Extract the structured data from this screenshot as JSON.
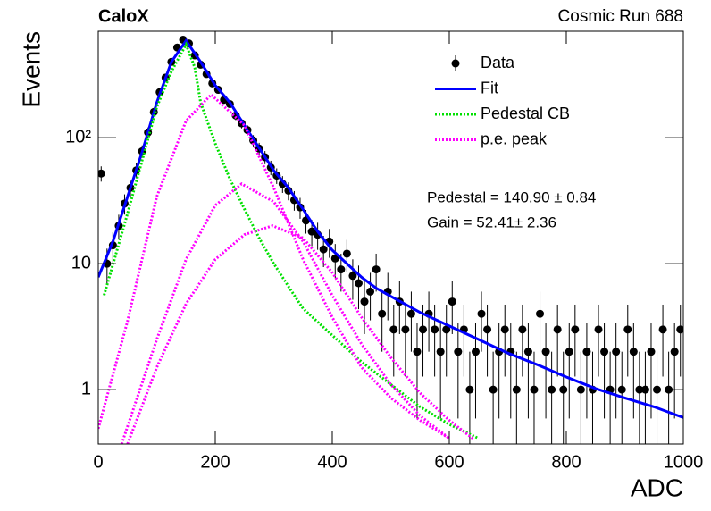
{
  "chart_data": {
    "type": "scatter",
    "title": "CaloX",
    "subtitle": "Cosmic Run 688",
    "xlabel": "ADC",
    "ylabel": "Events",
    "annotations": [
      "Pedestal = 140.90 ± 0.84",
      "Gain = 52.41± 2.36"
    ],
    "xlim": [
      0,
      1000
    ],
    "xticks": [
      0,
      200,
      400,
      600,
      800,
      1000
    ],
    "ylim": [
      0.37,
      700
    ],
    "yticks": [
      1,
      10,
      {
        "value": 100,
        "label": "10²"
      }
    ],
    "log_y": true,
    "series": [
      {
        "name": "Data",
        "style": "points",
        "color": "#000000",
        "x": [
          5,
          15,
          25,
          35,
          45,
          55,
          65,
          75,
          85,
          95,
          105,
          115,
          125,
          135,
          145,
          155,
          165,
          175,
          185,
          195,
          205,
          215,
          225,
          235,
          245,
          255,
          265,
          275,
          285,
          295,
          305,
          315,
          325,
          335,
          345,
          355,
          365,
          375,
          385,
          395,
          405,
          415,
          425,
          435,
          445,
          455,
          465,
          475,
          485,
          495,
          505,
          515,
          525,
          535,
          545,
          555,
          565,
          575,
          585,
          595,
          605,
          615,
          625,
          635,
          645,
          655,
          665,
          675,
          685,
          695,
          705,
          715,
          725,
          735,
          745,
          755,
          765,
          775,
          785,
          795,
          805,
          815,
          825,
          835,
          845,
          855,
          865,
          875,
          885,
          895,
          905,
          915,
          925,
          935,
          945,
          955,
          965,
          975,
          985,
          995
        ],
        "values": [
          52,
          10,
          14,
          20,
          30,
          40,
          55,
          78,
          110,
          160,
          230,
          300,
          400,
          520,
          600,
          560,
          450,
          380,
          320,
          270,
          240,
          200,
          185,
          150,
          130,
          115,
          95,
          82,
          70,
          58,
          50,
          43,
          38,
          32,
          28,
          22,
          18,
          17,
          13,
          15,
          11,
          9,
          12,
          8,
          7,
          5,
          6,
          9,
          4,
          6,
          3,
          5,
          3,
          4,
          2,
          3,
          4,
          3,
          2,
          3,
          5,
          2,
          3,
          1,
          2,
          4,
          3,
          1,
          2,
          3,
          2,
          1,
          3,
          2,
          1,
          4,
          2,
          1,
          3,
          1,
          2,
          3,
          1,
          2,
          1,
          3,
          2,
          1,
          2,
          1,
          3,
          2,
          1,
          1,
          2,
          1,
          3,
          1,
          2,
          3
        ],
        "errors": [
          7.21,
          3.16,
          3.74,
          4.47,
          5.48,
          6.32,
          7.42,
          8.83,
          10.49,
          12.65,
          15.17,
          17.32,
          20,
          22.8,
          24.49,
          23.66,
          21.21,
          19.49,
          17.89,
          16.43,
          15.49,
          14.14,
          13.6,
          12.25,
          11.4,
          10.72,
          9.75,
          9.06,
          8.37,
          7.62,
          7.07,
          6.56,
          6.16,
          5.66,
          5.29,
          4.69,
          4.24,
          4.12,
          3.61,
          3.87,
          3.32,
          3,
          3.46,
          2.83,
          2.65,
          2.24,
          2.45,
          3,
          2,
          2.45,
          1.73,
          2.24,
          1.73,
          2,
          1.41,
          1.73,
          2,
          1.73,
          1.41,
          1.73,
          2.24,
          1.41,
          1.73,
          1,
          1.41,
          2,
          1.73,
          1,
          1.41,
          1.73,
          1.41,
          1,
          1.73,
          1.41,
          1,
          2,
          1.41,
          1,
          1.73,
          1,
          1.41,
          1.73,
          1,
          1.41,
          1,
          1.73,
          1.41,
          1,
          1.41,
          1,
          1.73,
          1.41,
          1,
          1,
          1.41,
          1,
          1.73,
          1,
          1.41,
          1.73
        ]
      },
      {
        "name": "Fit",
        "style": "line",
        "color": "#0000ff",
        "x": [
          0,
          25,
          50,
          75,
          100,
          125,
          150,
          175,
          200,
          225,
          250,
          275,
          300,
          325,
          350,
          375,
          400,
          425,
          450,
          475,
          500,
          550,
          600,
          650,
          700,
          750,
          800,
          850,
          900,
          950,
          1000
        ],
        "values": [
          7.8,
          15,
          34,
          77,
          190,
          400,
          590,
          400,
          260,
          190,
          125,
          83,
          55,
          40,
          27,
          18,
          12.8,
          10,
          7.8,
          6.4,
          5.5,
          4.1,
          3.2,
          2.5,
          1.95,
          1.58,
          1.26,
          1.02,
          0.86,
          0.73,
          0.6
        ]
      },
      {
        "name": "Pedestal CB",
        "style": "dotted",
        "color": "#00e000",
        "x": [
          10,
          50,
          100,
          125,
          150,
          165,
          175,
          200,
          225,
          250,
          275,
          300,
          325,
          350,
          400,
          450,
          500,
          550,
          600,
          650
        ],
        "values": [
          5.6,
          25,
          175,
          335,
          550,
          360,
          190,
          90,
          47,
          27,
          16,
          10,
          6.6,
          4.4,
          2.7,
          1.66,
          1.1,
          0.73,
          0.53,
          0.41
        ]
      },
      {
        "name": "p.e. peak",
        "style": "dotted",
        "color": "#ff00ff",
        "x": [
          0,
          50,
          100,
          150,
          193,
          250,
          300,
          350,
          400,
          450,
          500,
          550,
          600,
          null,
          40,
          100,
          150,
          200,
          245,
          300,
          350,
          400,
          450,
          500,
          550,
          600,
          null,
          50,
          100,
          150,
          200,
          250,
          298,
          350,
          400,
          450,
          500,
          550,
          600,
          640
        ],
        "values": [
          0.49,
          3.5,
          34,
          136,
          220,
          125,
          40,
          10.8,
          3.75,
          1.5,
          0.86,
          0.57,
          0.41,
          null,
          0.37,
          2.5,
          10.8,
          29,
          43,
          31,
          15,
          5.6,
          2.3,
          1.1,
          0.62,
          0.41,
          null,
          0.37,
          1.5,
          4.8,
          10.8,
          17,
          20,
          16,
          8.5,
          3.75,
          1.8,
          0.94,
          0.57,
          0.41
        ]
      }
    ]
  }
}
